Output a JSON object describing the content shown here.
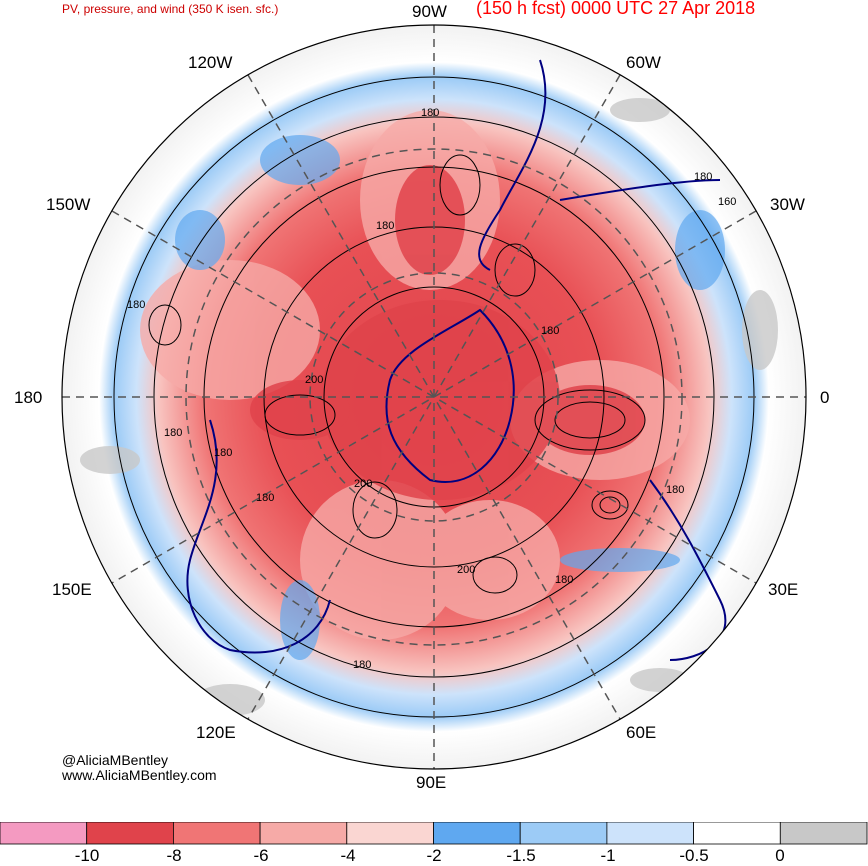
{
  "title_left": "PV, pressure, and wind (350 K isen. sfc.)",
  "title_right": "(150 h fcst) 0000 UTC 27 Apr 2018",
  "longitude_labels": {
    "lon_90w": "90W",
    "lon_60w": "60W",
    "lon_30w": "30W",
    "lon_0": "0",
    "lon_30e": "30E",
    "lon_60e": "60E",
    "lon_90e": "90E",
    "lon_120e": "120E",
    "lon_150e": "150E",
    "lon_180": "180",
    "lon_150w": "150W",
    "lon_120w": "120W"
  },
  "contour_labels": [
    "180",
    "180",
    "180",
    "160",
    "180",
    "200",
    "200",
    "200",
    "180",
    "180",
    "180",
    "180",
    "160",
    "180",
    "180",
    "180"
  ],
  "credit": {
    "handle": "@AliciaMBentley",
    "website": "www.AliciaMBentley.com"
  },
  "colorbar": {
    "bins": [
      {
        "color": "#f49ac1"
      },
      {
        "color": "#e0434b"
      },
      {
        "color": "#f07575"
      },
      {
        "color": "#f6aaa7"
      },
      {
        "color": "#fad6d2"
      },
      {
        "color": "#5fa8f0"
      },
      {
        "color": "#9ccbf6"
      },
      {
        "color": "#cde3fb"
      },
      {
        "color": "#ffffff"
      },
      {
        "color": "#c8c8c8"
      }
    ],
    "tick_labels": [
      "-10",
      "-8",
      "-6",
      "-4",
      "-2",
      "-1.5",
      "-1",
      "-0.5",
      "0"
    ]
  },
  "colors": {
    "title": "#cc0000",
    "coastline": "#000080",
    "contour": "#000000",
    "grid": "#555555"
  }
}
